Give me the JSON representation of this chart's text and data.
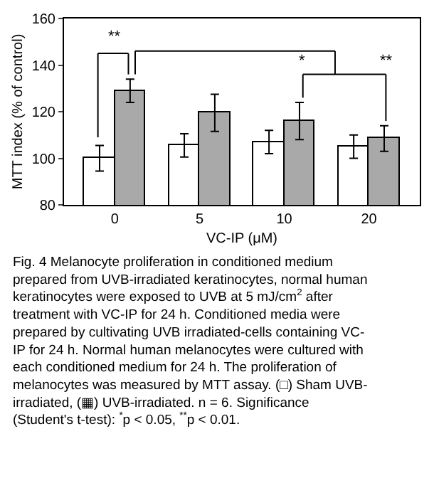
{
  "chart_data": {
    "type": "bar",
    "xlabel": "VC-IP (μM)",
    "ylabel": "MTT index (% of control)",
    "categories": [
      "0",
      "5",
      "10",
      "20"
    ],
    "series": [
      {
        "color": "#ffffff",
        "values": [
          100,
          105.5,
          107,
          105
        ],
        "errors": [
          5.5,
          5,
          5,
          5
        ]
      },
      {
        "color": "#a9a9a9",
        "values": [
          129,
          119.5,
          116,
          108.5
        ],
        "errors": [
          5,
          8,
          8,
          5.5
        ]
      }
    ],
    "ylim": [
      80,
      160
    ],
    "yticks": [
      80,
      100,
      120,
      140,
      160
    ],
    "annotations": [
      "**",
      "*",
      "**",
      "Fig. 4 Melanocyte proliferation in conditioned medium prepared from UVB-irradiated keratinocytes, normal human keratinocytes were exposed to UVB at 5 mJ/cm$^{2}$ after treatment with VC-IP for 24 h. Conditioned media were prepared by cultivating UVB irradiated-cells containing VC-IP for 24 h. Normal human melanocytes were cultured with each conditioned medium for 24 h. The proliferation of melanocytes was measured by MTT assay. (□) Sham UVB-irradiated, (▦) UVB-irradiated. n = 6. Significance (Student's t-test): $^{*}$p < 0.05, $^{**}$p < 0.01."
    ]
  }
}
